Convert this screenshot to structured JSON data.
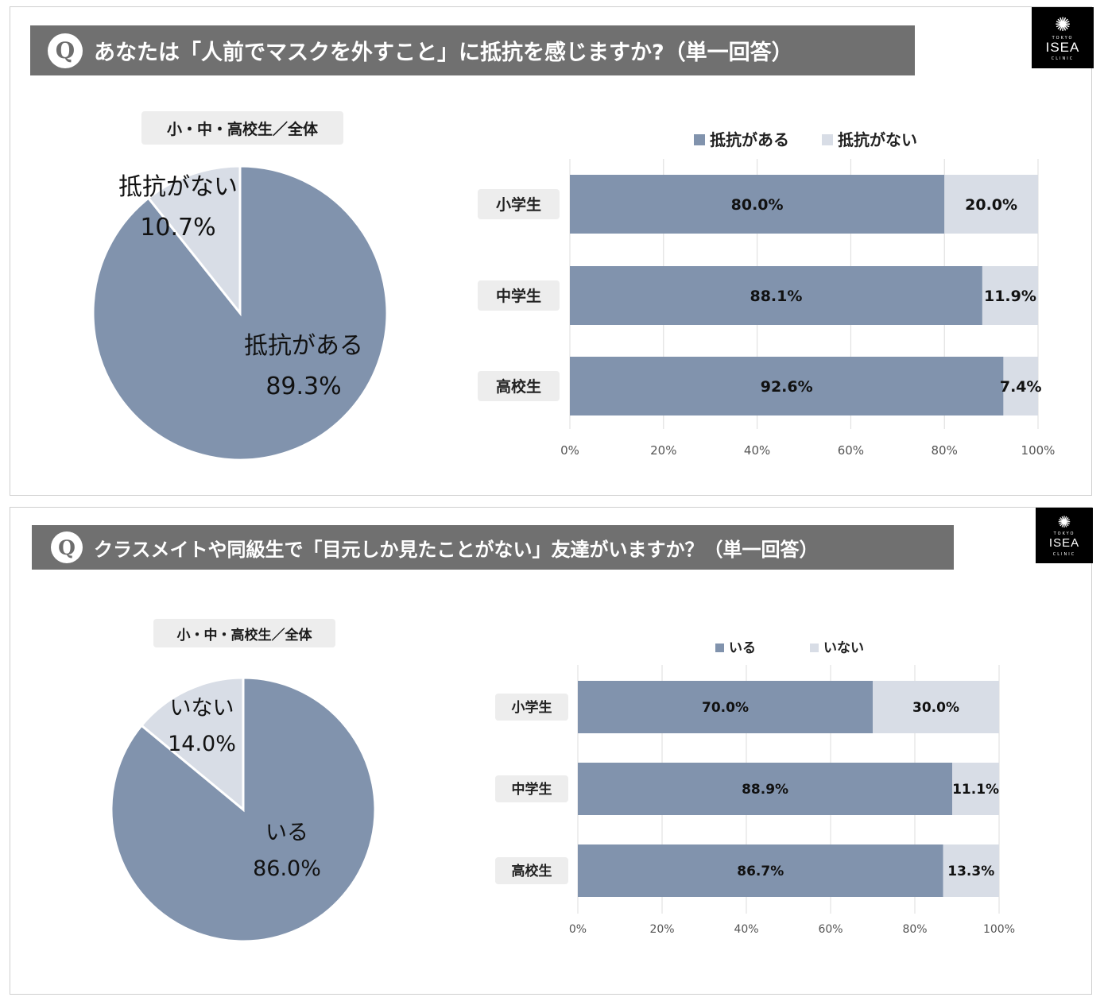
{
  "brand": {
    "city": "TOKYO",
    "name": "ISEA",
    "sub": "CLINIC"
  },
  "colors": {
    "primary": "#8193ad",
    "secondary": "#d8dde6",
    "bar_header": "#707070"
  },
  "charts": [
    {
      "question_mark": "Q",
      "question": "あなたは「人前でマスクを外すこと」に抵抗を感じますか?（単一回答）",
      "pie": {
        "title": "小・中・高校生／全体",
        "type": "pie",
        "slices": [
          {
            "label": "抵抗がある",
            "value": 89.3,
            "text": "89.3%"
          },
          {
            "label": "抵抗がない",
            "value": 10.7,
            "text": "10.7%"
          }
        ]
      },
      "bar": {
        "type": "bar",
        "stacked": true,
        "orientation": "horizontal",
        "legend": [
          "抵抗がある",
          "抵抗がない"
        ],
        "legend_position": "top",
        "categories": [
          "小学生",
          "中学生",
          "高校生"
        ],
        "series": [
          {
            "name": "抵抗がある",
            "values": [
              80.0,
              88.1,
              92.6
            ],
            "labels": [
              "80.0%",
              "88.1%",
              "92.6%"
            ]
          },
          {
            "name": "抵抗がない",
            "values": [
              20.0,
              11.9,
              7.4
            ],
            "labels": [
              "20.0%",
              "11.9%",
              "7.4%"
            ]
          }
        ],
        "xlim": [
          0,
          100
        ],
        "ticks": [
          "0%",
          "20%",
          "40%",
          "60%",
          "80%",
          "100%"
        ],
        "grid": true
      }
    },
    {
      "question_mark": "Q",
      "question": "クラスメイトや同級生で「目元しか見たことがない」友達がいますか？（単一回答）",
      "pie": {
        "title": "小・中・高校生／全体",
        "type": "pie",
        "slices": [
          {
            "label": "いる",
            "value": 86.0,
            "text": "86.0%"
          },
          {
            "label": "いない",
            "value": 14.0,
            "text": "14.0%"
          }
        ]
      },
      "bar": {
        "type": "bar",
        "stacked": true,
        "orientation": "horizontal",
        "legend": [
          "いる",
          "いない"
        ],
        "legend_position": "top",
        "categories": [
          "小学生",
          "中学生",
          "高校生"
        ],
        "series": [
          {
            "name": "いる",
            "values": [
              70.0,
              88.9,
              86.7
            ],
            "labels": [
              "70.0%",
              "88.9%",
              "86.7%"
            ]
          },
          {
            "name": "いない",
            "values": [
              30.0,
              11.1,
              13.3
            ],
            "labels": [
              "30.0%",
              "11.1%",
              "13.3%"
            ]
          }
        ],
        "xlim": [
          0,
          100
        ],
        "ticks": [
          "0%",
          "20%",
          "40%",
          "60%",
          "80%",
          "100%"
        ],
        "grid": true
      }
    }
  ]
}
